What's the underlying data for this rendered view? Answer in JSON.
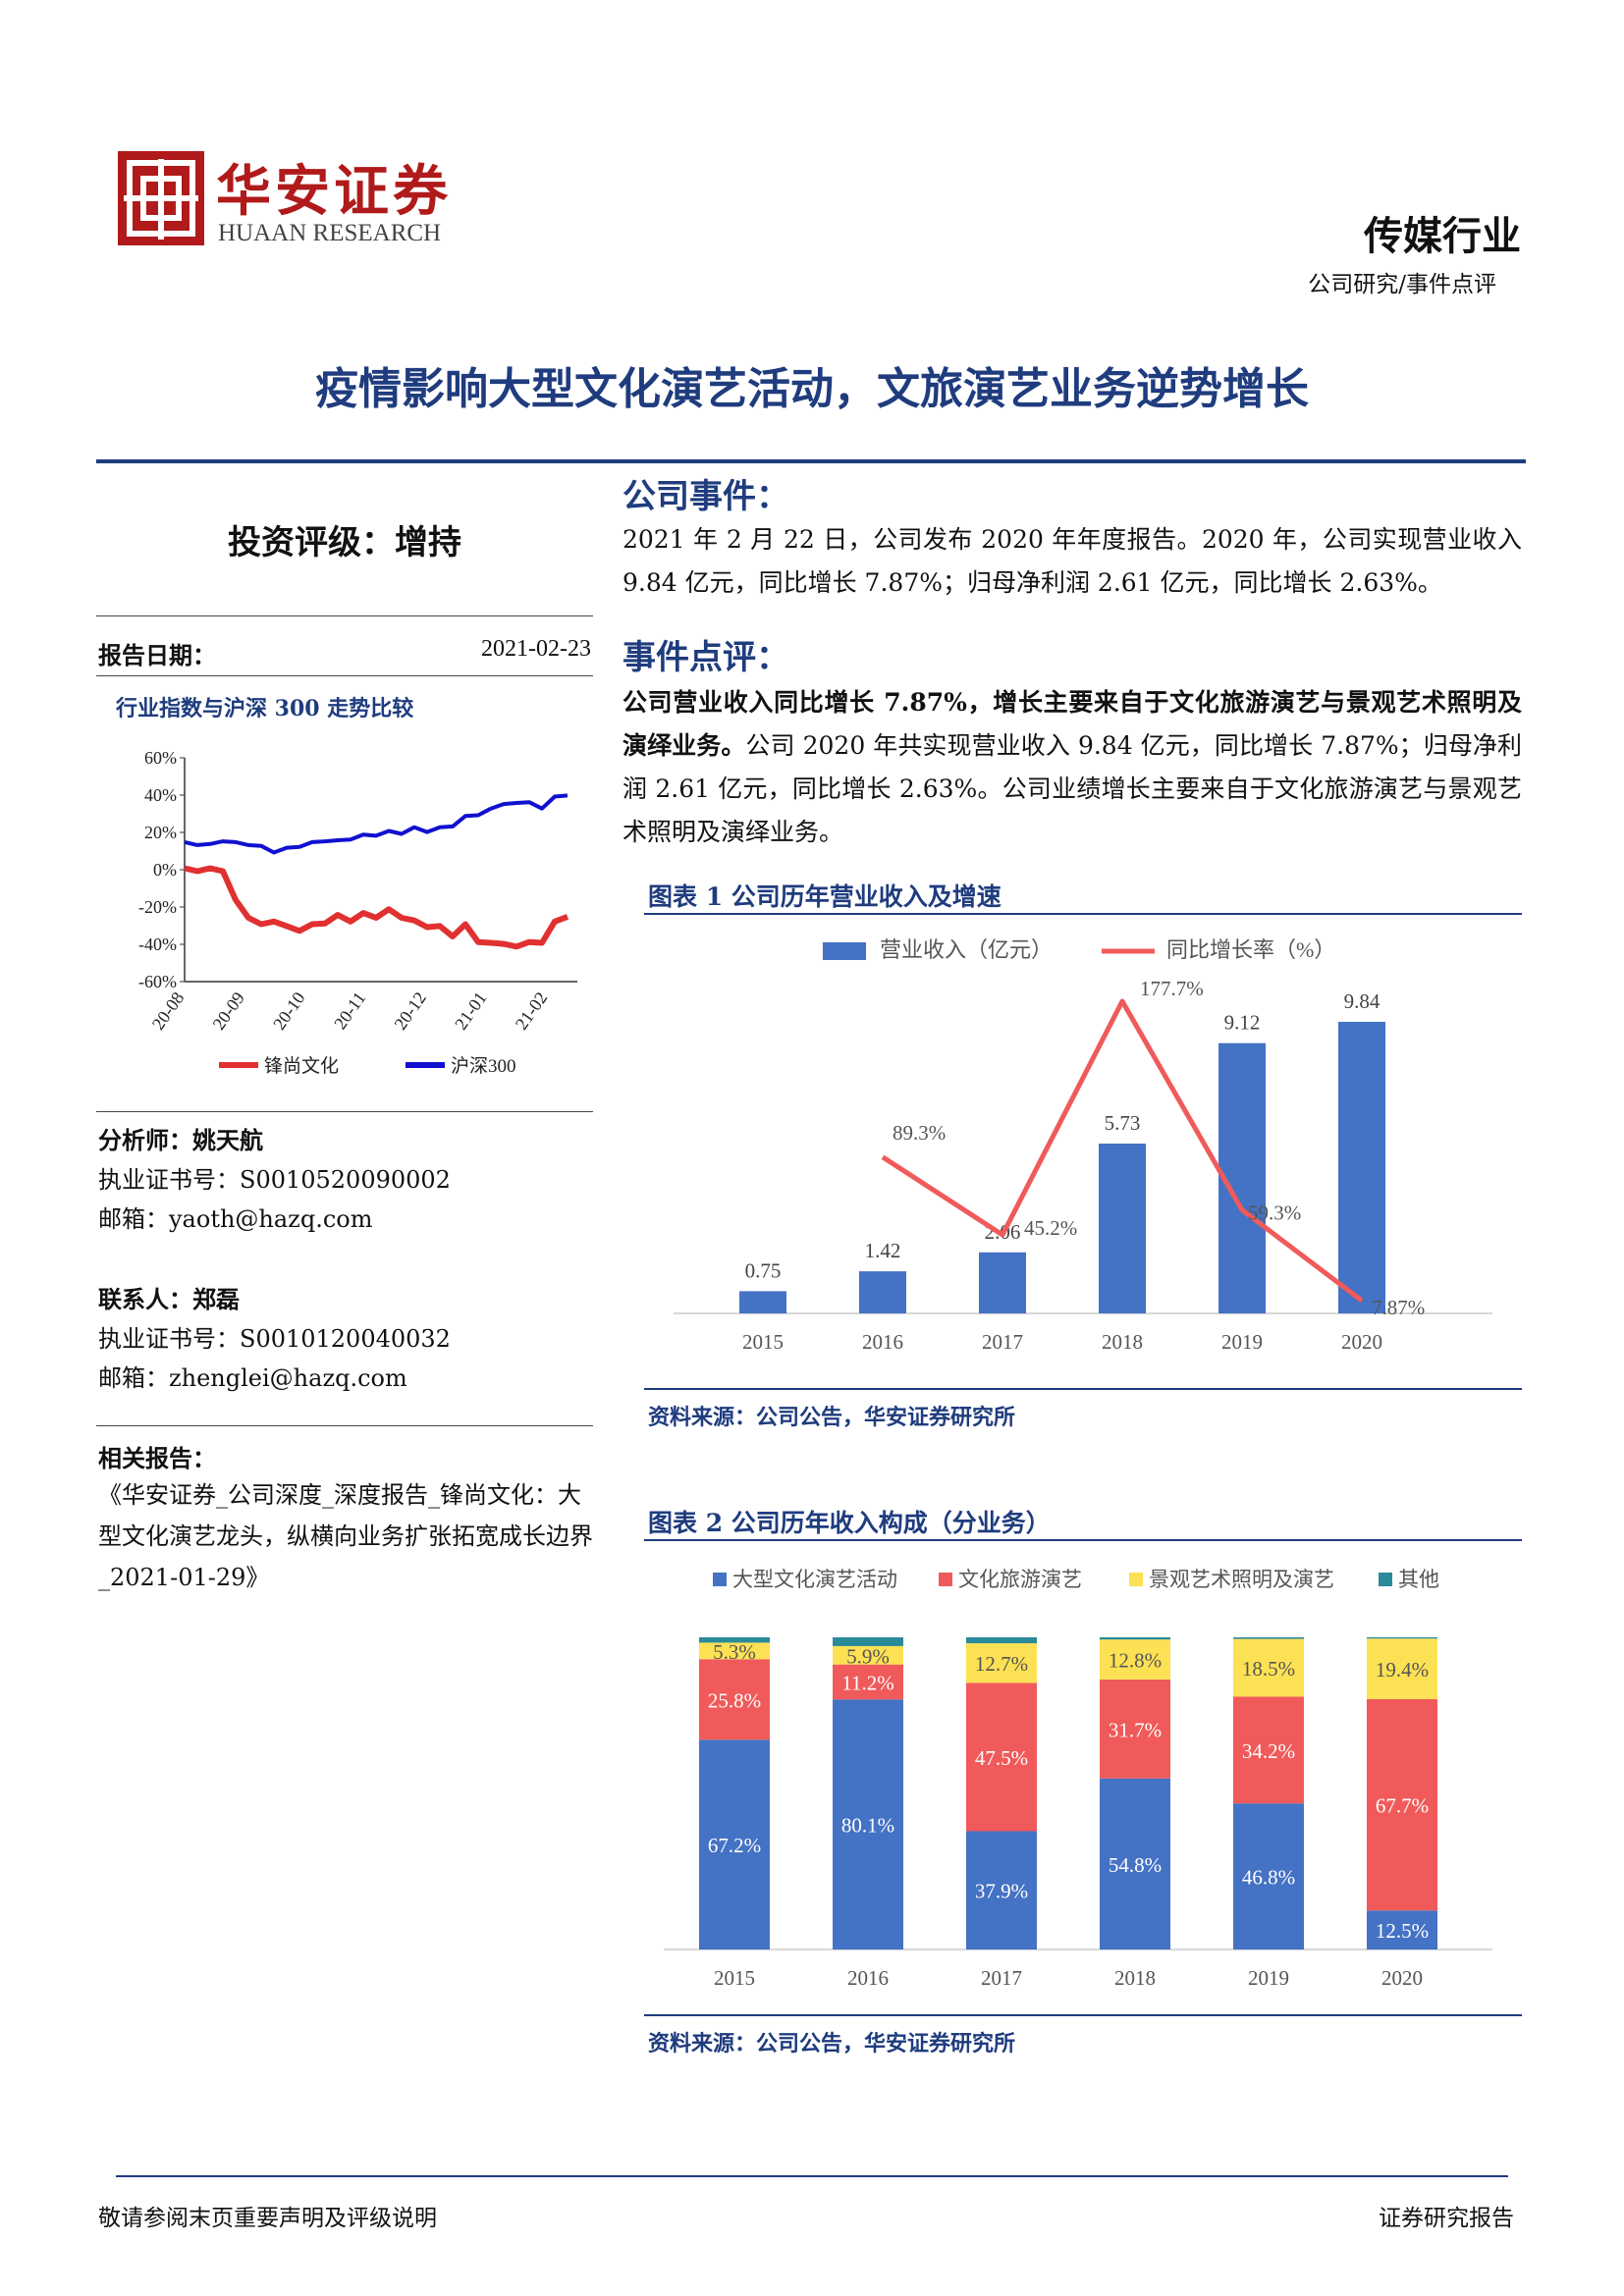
{
  "header": {
    "logo_cn": "华安证券",
    "logo_en": "HUAAN RESEARCH",
    "industry": "传媒行业",
    "category": "公司研究/事件点评"
  },
  "title": "疫情影响大型文化演艺活动，文旅演艺业务逆势增长",
  "colors": {
    "navy": "#1f3c7e",
    "blue": "#4472c4",
    "red": "#f05a5a",
    "yellow": "#fde154",
    "teal": "#2a8a9a",
    "line_red": "#e03030",
    "line_blue": "#1010d0"
  },
  "sidebar": {
    "rating": "投资评级：增持",
    "report_date_label": "报告日期：",
    "report_date": "2021-02-23",
    "chart_title": "行业指数与沪深 300 走势比较",
    "analyst_label": "分析师：",
    "analyst": "姚天航",
    "analyst_cert": "执业证书号：S0010520090002",
    "analyst_email": "邮箱：yaoth@hazq.com",
    "contact_label": "联系人：",
    "contact": "郑磊",
    "contact_cert": "执业证书号：S0010120040032",
    "contact_email": "邮箱：zhenglei@hazq.com",
    "related_label": "相关报告：",
    "related": "《华安证券_公司深度_深度报告_锋尚文化：大型文化演艺龙头，纵横向业务扩张拓宽成长边界_2021-01-29》"
  },
  "main": {
    "event_head": "公司事件：",
    "event_text": "2021 年 2 月 22 日，公司发布 2020 年年度报告。2020 年，公司实现营业收入 9.84 亿元，同比增长 7.87%；归母净利润 2.61 亿元，同比增长 2.63%。",
    "comment_head": "事件点评：",
    "comment_bold": "公司营业收入同比增长 7.87%，增长主要来自于文化旅游演艺与景观艺术照明及演绎业务。",
    "comment_text": "公司 2020 年共实现营业收入 9.84 亿元，同比增长 7.87%；归母净利润 2.61 亿元，同比增长 2.63%。公司业绩增长主要来自于文化旅游演艺与景观艺术照明及演绎业务。",
    "fig1_title": "图表 1 公司历年营业收入及增速",
    "fig1_source": "资料来源：公司公告，华安证券研究所",
    "fig2_title": "图表 2 公司历年收入构成（分业务）",
    "fig2_source": "资料来源：公司公告，华安证券研究所"
  },
  "footer": {
    "left": "敬请参阅末页重要声明及评级说明",
    "right": "证券研究报告"
  },
  "chart_data": [
    {
      "type": "line",
      "title": "行业指数与沪深 300 走势比较",
      "x_ticks": [
        "20-08",
        "20-09",
        "20-10",
        "20-11",
        "20-12",
        "21-01",
        "21-02"
      ],
      "ylim": [
        -60,
        60
      ],
      "y_ticks": [
        "60%",
        "40%",
        "20%",
        "0%",
        "-20%",
        "-40%",
        "-60%"
      ],
      "series": [
        {
          "name": "锋尚文化",
          "values": [
            0,
            0,
            0,
            0,
            -17,
            -25,
            -30,
            -27,
            -31,
            -32,
            -30,
            -28,
            -25,
            -27,
            -24,
            -25,
            -22,
            -25,
            -28,
            -30,
            -31,
            -35,
            -30,
            -38,
            -40,
            -39,
            -42,
            -38,
            -40,
            -27,
            -26
          ]
        },
        {
          "name": "沪深300",
          "values": [
            14,
            14,
            13,
            16,
            14,
            14,
            12,
            10,
            11,
            13,
            14,
            16,
            15,
            17,
            18,
            19,
            20,
            20,
            22,
            21,
            22,
            24,
            28,
            30,
            32,
            36,
            35,
            37,
            32,
            40,
            39
          ]
        }
      ]
    },
    {
      "type": "bar",
      "title": "图表 1 公司历年营业收入及增速",
      "categories": [
        "2015",
        "2016",
        "2017",
        "2018",
        "2019",
        "2020"
      ],
      "series": [
        {
          "name": "营业收入（亿元）",
          "values": [
            0.75,
            1.42,
            2.06,
            5.73,
            9.12,
            9.84
          ],
          "labels": [
            "0.75",
            "1.42",
            "2.06",
            "5.73",
            "9.12",
            "9.84"
          ]
        },
        {
          "name": "同比增长率（%）",
          "values": [
            null,
            89.3,
            45.2,
            177.7,
            59.3,
            7.87
          ],
          "labels": [
            "",
            "89.3%",
            "45.2%",
            "177.7%",
            "59.3%",
            "7.87%"
          ]
        }
      ]
    },
    {
      "type": "bar",
      "stacked": true,
      "title": "图表 2 公司历年收入构成（分业务）",
      "categories": [
        "2015",
        "2016",
        "2017",
        "2018",
        "2019",
        "2020"
      ],
      "series": [
        {
          "name": "大型文化演艺活动",
          "values": [
            67.2,
            80.1,
            37.9,
            54.8,
            46.8,
            12.5
          ],
          "labels": [
            "67.2%",
            "80.1%",
            "37.9%",
            "54.8%",
            "46.8%",
            "12.5%"
          ]
        },
        {
          "name": "文化旅游演艺",
          "values": [
            25.8,
            11.2,
            47.5,
            31.7,
            34.2,
            67.7
          ],
          "labels": [
            "25.8%",
            "11.2%",
            "47.5%",
            "31.7%",
            "34.2%",
            "67.7%"
          ]
        },
        {
          "name": "景观艺术照明及演艺",
          "values": [
            5.3,
            5.9,
            12.7,
            12.8,
            18.5,
            19.4
          ],
          "labels": [
            "5.3%",
            "5.9%",
            "12.7%",
            "12.8%",
            "18.5%",
            "19.4%"
          ]
        },
        {
          "name": "其他",
          "values": [
            1.7,
            2.8,
            1.9,
            0.7,
            0.5,
            0.4
          ],
          "labels": [
            "",
            "",
            "",
            "",
            "",
            ""
          ]
        }
      ]
    }
  ]
}
